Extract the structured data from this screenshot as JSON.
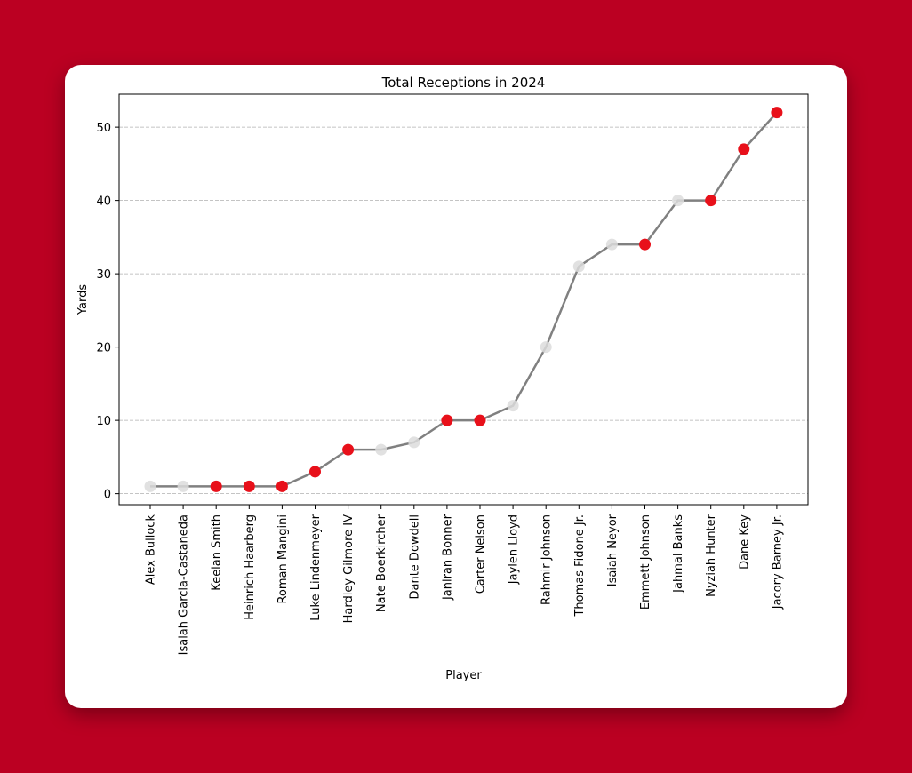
{
  "chart_data": {
    "type": "line",
    "title": "Total Receptions in 2024",
    "xlabel": "Player",
    "ylabel": "Yards",
    "ylim": [
      -1.5,
      54.5
    ],
    "yticks": [
      0,
      10,
      20,
      30,
      40,
      50
    ],
    "grid": "y-dashed",
    "colors": {
      "line": "#808080",
      "highlight": "#e8101a",
      "muted": "#dcdcdc",
      "grid": "#b0b0b0"
    },
    "players": [
      {
        "name": "Alex Bullock",
        "value": 1,
        "highlight": false
      },
      {
        "name": "Isaiah Garcia-Castaneda",
        "value": 1,
        "highlight": false
      },
      {
        "name": "Keelan Smith",
        "value": 1,
        "highlight": true
      },
      {
        "name": "Heinrich Haarberg",
        "value": 1,
        "highlight": true
      },
      {
        "name": "Roman Mangini",
        "value": 1,
        "highlight": true
      },
      {
        "name": "Luke Lindenmeyer",
        "value": 3,
        "highlight": true
      },
      {
        "name": "Hardley Gilmore IV",
        "value": 6,
        "highlight": true
      },
      {
        "name": "Nate Boerkircher",
        "value": 6,
        "highlight": false
      },
      {
        "name": "Dante Dowdell",
        "value": 7,
        "highlight": false
      },
      {
        "name": "Janiran Bonner",
        "value": 10,
        "highlight": true
      },
      {
        "name": "Carter Nelson",
        "value": 10,
        "highlight": true
      },
      {
        "name": "Jaylen Lloyd",
        "value": 12,
        "highlight": false
      },
      {
        "name": "Rahmir Johnson",
        "value": 20,
        "highlight": false
      },
      {
        "name": "Thomas Fidone Jr.",
        "value": 31,
        "highlight": false
      },
      {
        "name": "Isaiah Neyor",
        "value": 34,
        "highlight": false
      },
      {
        "name": "Emmett Johnson",
        "value": 34,
        "highlight": true
      },
      {
        "name": "Jahmal Banks",
        "value": 40,
        "highlight": false
      },
      {
        "name": "Nyziah Hunter",
        "value": 40,
        "highlight": true
      },
      {
        "name": "Dane Key",
        "value": 47,
        "highlight": true
      },
      {
        "name": "Jacory Barney Jr.",
        "value": 52,
        "highlight": true
      }
    ]
  }
}
